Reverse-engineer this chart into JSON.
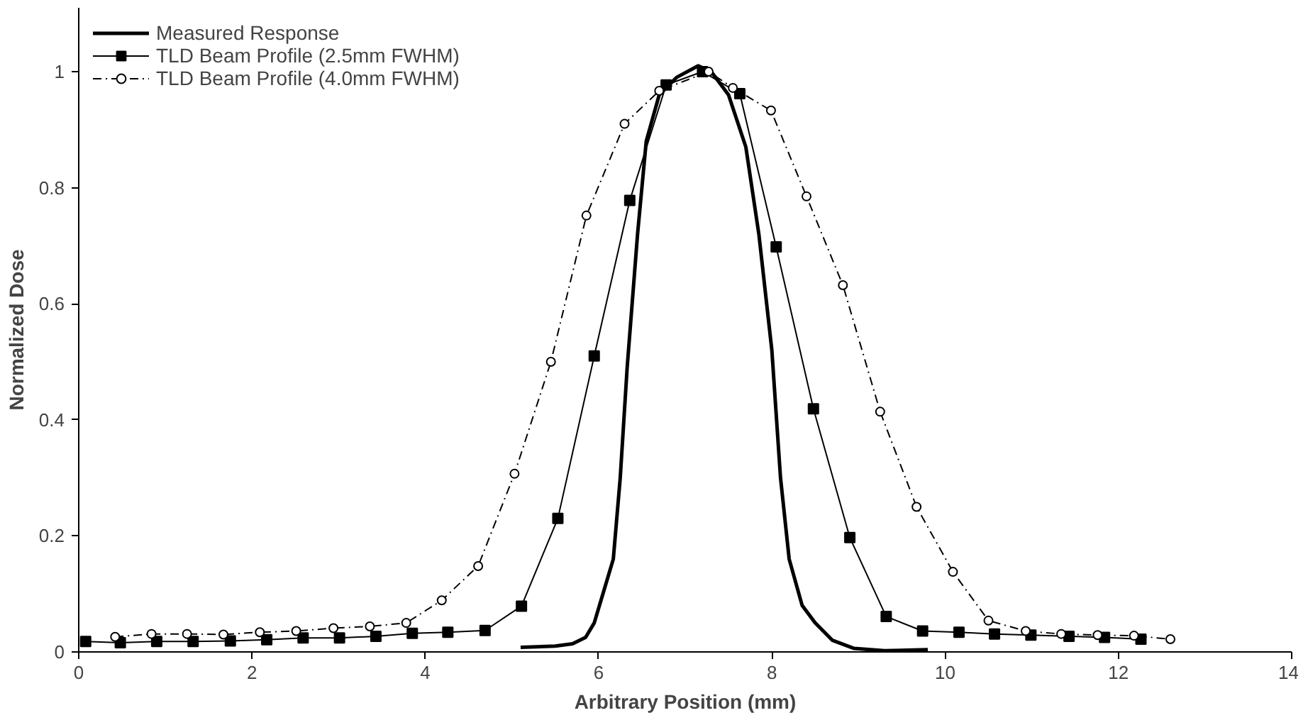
{
  "chart_data": {
    "type": "line",
    "xlabel": "Arbitrary Position (mm)",
    "ylabel": "Normalized Dose",
    "xlim": [
      0,
      14
    ],
    "xticks": [
      0,
      2,
      4,
      6,
      8,
      10,
      12,
      14
    ],
    "ylim": [
      0,
      1.11
    ],
    "yticks": [
      0,
      0.2,
      0.4,
      0.6,
      0.8,
      1
    ],
    "grid": false,
    "legend": "top left",
    "series": [
      {
        "name": "Measured Response",
        "color": "#000000",
        "marker": "none",
        "line_style": "solid",
        "x": [
          5.1,
          5.5,
          5.7,
          5.85,
          5.95,
          6.05,
          6.17,
          6.25,
          6.33,
          6.45,
          6.55,
          6.7,
          6.9,
          7.15,
          7.3,
          7.5,
          7.7,
          7.85,
          8.0,
          8.1,
          8.2,
          8.35,
          8.5,
          8.7,
          8.95,
          9.3,
          9.8
        ],
        "values": [
          0.008,
          0.01,
          0.014,
          0.025,
          0.05,
          0.1,
          0.16,
          0.3,
          0.49,
          0.72,
          0.88,
          0.96,
          0.99,
          1.01,
          1.0,
          0.96,
          0.87,
          0.72,
          0.52,
          0.3,
          0.16,
          0.08,
          0.05,
          0.02,
          0.006,
          0.002,
          0.004
        ]
      },
      {
        "name": "TLD Beam Profile (2.5mm FWHM)",
        "color": "#000000",
        "marker": "square",
        "line_style": "solid",
        "x": [
          0.08,
          0.48,
          0.9,
          1.32,
          1.75,
          2.17,
          2.59,
          3.01,
          3.43,
          3.85,
          4.26,
          4.69,
          5.11,
          5.53,
          5.95,
          6.36,
          6.78,
          7.2,
          7.63,
          8.05,
          8.48,
          8.9,
          9.32,
          9.74,
          10.16,
          10.57,
          10.99,
          11.43,
          11.84,
          12.26
        ],
        "values": [
          0.018,
          0.016,
          0.018,
          0.018,
          0.019,
          0.021,
          0.024,
          0.024,
          0.027,
          0.032,
          0.034,
          0.037,
          0.079,
          0.23,
          0.51,
          0.778,
          0.977,
          1.0,
          0.962,
          0.698,
          0.419,
          0.197,
          0.061,
          0.036,
          0.034,
          0.031,
          0.029,
          0.027,
          0.025,
          0.022
        ]
      },
      {
        "name": "TLD Beam Profile (4.0mm FWHM)",
        "color": "#000000",
        "marker": "circle",
        "line_style": "dashdot",
        "x": [
          0.42,
          0.84,
          1.25,
          1.67,
          2.09,
          2.51,
          2.94,
          3.36,
          3.78,
          4.19,
          4.61,
          5.03,
          5.45,
          5.86,
          6.3,
          6.7,
          7.27,
          7.55,
          7.99,
          8.4,
          8.82,
          9.25,
          9.67,
          10.09,
          10.5,
          10.93,
          11.34,
          11.76,
          12.18,
          12.6
        ],
        "values": [
          0.026,
          0.031,
          0.031,
          0.03,
          0.034,
          0.036,
          0.041,
          0.044,
          0.05,
          0.089,
          0.148,
          0.307,
          0.5,
          0.752,
          0.91,
          0.967,
          1.0,
          0.972,
          0.933,
          0.785,
          0.632,
          0.414,
          0.25,
          0.138,
          0.054,
          0.036,
          0.031,
          0.029,
          0.028,
          0.022
        ]
      }
    ]
  }
}
